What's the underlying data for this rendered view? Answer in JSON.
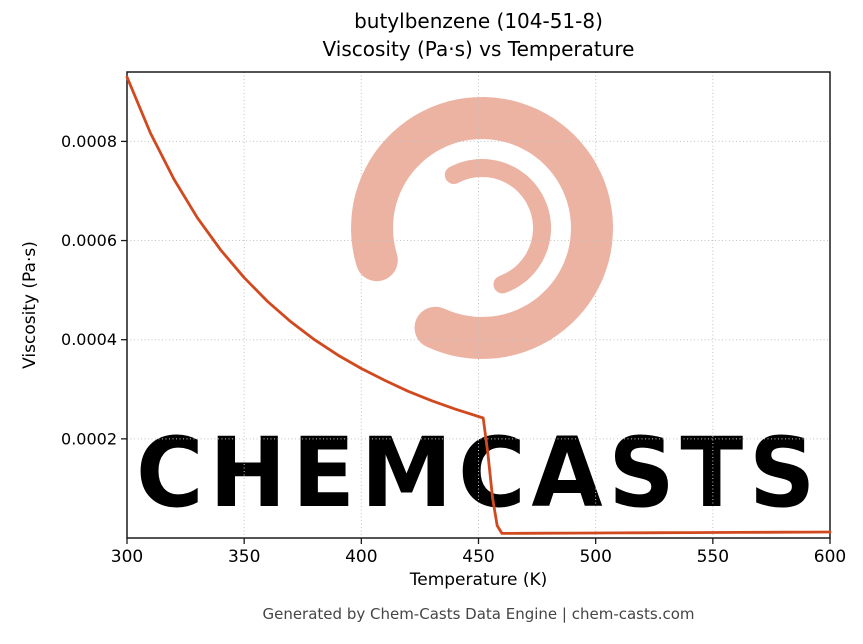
{
  "footer": {
    "text": "Generated by Chem-Casts Data Engine | chem-casts.com"
  },
  "watermark": {
    "text": "CHEMCASTS",
    "color": "rgba(208,64,24,0.40)",
    "logo": "paint-swirl-ring"
  },
  "chart_data": {
    "type": "line",
    "title": "butylbenzene (104-51-8)",
    "subtitle": "Viscosity (Pa·s) vs Temperature",
    "xlabel": "Temperature (K)",
    "ylabel": "Viscosity (Pa·s)",
    "xlim": [
      300,
      600
    ],
    "ylim": [
      0,
      0.00094
    ],
    "xticks": [
      300,
      350,
      400,
      450,
      500,
      550,
      600
    ],
    "yticks": [
      0.0002,
      0.0004,
      0.0006,
      0.0008
    ],
    "grid": true,
    "grid_style": "dotted",
    "legend": "none",
    "line_color": "#d14a1f",
    "frame_color": "#1a1a1a",
    "series": [
      {
        "name": "viscosity",
        "x": [
          300,
          310,
          320,
          330,
          340,
          350,
          360,
          370,
          380,
          390,
          400,
          410,
          420,
          430,
          440,
          450,
          452,
          454,
          456,
          458,
          460,
          470,
          480,
          490,
          500,
          510,
          520,
          530,
          540,
          550,
          560,
          570,
          580,
          590,
          600
        ],
        "y": [
          0.00093,
          0.000817,
          0.000724,
          0.000646,
          0.000581,
          0.000525,
          0.000477,
          0.000436,
          0.0004,
          0.000369,
          0.000342,
          0.000318,
          0.000296,
          0.000277,
          0.00026,
          0.000245,
          0.000242,
          0.00017,
          8e-05,
          2.5e-05,
          9.3e-06,
          9.5e-06,
          9.7e-06,
          9.9e-06,
          1.01e-05,
          1.03e-05,
          1.05e-05,
          1.07e-05,
          1.09e-05,
          1.11e-05,
          1.13e-05,
          1.15e-05,
          1.17e-05,
          1.19e-05,
          1.21e-05
        ]
      }
    ]
  }
}
